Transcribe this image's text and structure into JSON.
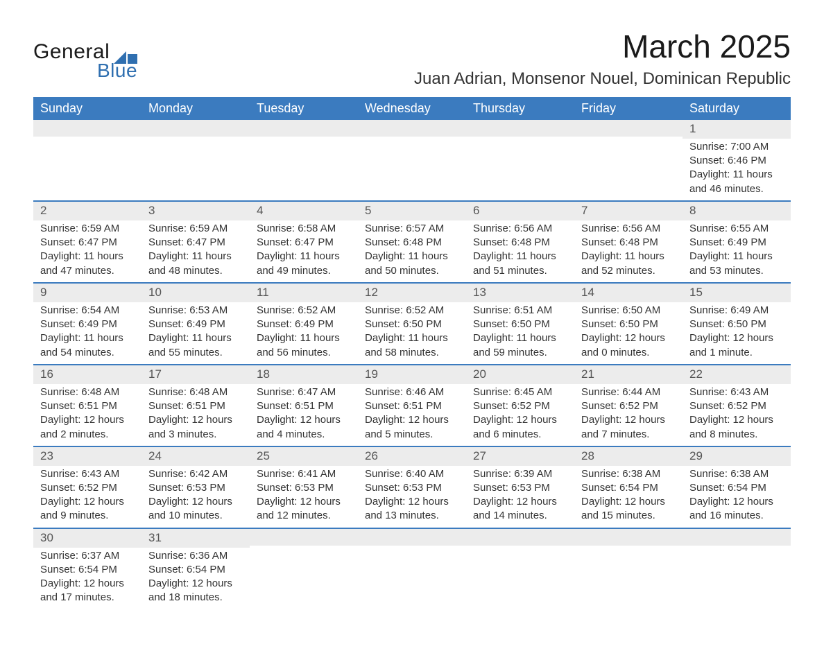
{
  "brand": {
    "general": "General",
    "blue": "Blue",
    "shape_color": "#2f6fb0"
  },
  "title": "March 2025",
  "location": "Juan Adrian, Monsenor Nouel, Dominican Republic",
  "colors": {
    "header_blue": "#3b7bbf",
    "row_separator": "#3b7bbf",
    "daynum_bg": "#ececec",
    "text": "#333333",
    "background": "#ffffff"
  },
  "typography": {
    "title_fontsize": 46,
    "location_fontsize": 24,
    "header_fontsize": 18,
    "body_fontsize": 15,
    "daynum_fontsize": 17,
    "font_family": "Arial"
  },
  "layout": {
    "columns": 7,
    "type": "table",
    "start_day": "Sunday",
    "leading_blanks": 6
  },
  "weekdays": [
    "Sunday",
    "Monday",
    "Tuesday",
    "Wednesday",
    "Thursday",
    "Friday",
    "Saturday"
  ],
  "days": [
    {
      "n": 1,
      "sunrise": "7:00 AM",
      "sunset": "6:46 PM",
      "daylight": "11 hours and 46 minutes."
    },
    {
      "n": 2,
      "sunrise": "6:59 AM",
      "sunset": "6:47 PM",
      "daylight": "11 hours and 47 minutes."
    },
    {
      "n": 3,
      "sunrise": "6:59 AM",
      "sunset": "6:47 PM",
      "daylight": "11 hours and 48 minutes."
    },
    {
      "n": 4,
      "sunrise": "6:58 AM",
      "sunset": "6:47 PM",
      "daylight": "11 hours and 49 minutes."
    },
    {
      "n": 5,
      "sunrise": "6:57 AM",
      "sunset": "6:48 PM",
      "daylight": "11 hours and 50 minutes."
    },
    {
      "n": 6,
      "sunrise": "6:56 AM",
      "sunset": "6:48 PM",
      "daylight": "11 hours and 51 minutes."
    },
    {
      "n": 7,
      "sunrise": "6:56 AM",
      "sunset": "6:48 PM",
      "daylight": "11 hours and 52 minutes."
    },
    {
      "n": 8,
      "sunrise": "6:55 AM",
      "sunset": "6:49 PM",
      "daylight": "11 hours and 53 minutes."
    },
    {
      "n": 9,
      "sunrise": "6:54 AM",
      "sunset": "6:49 PM",
      "daylight": "11 hours and 54 minutes."
    },
    {
      "n": 10,
      "sunrise": "6:53 AM",
      "sunset": "6:49 PM",
      "daylight": "11 hours and 55 minutes."
    },
    {
      "n": 11,
      "sunrise": "6:52 AM",
      "sunset": "6:49 PM",
      "daylight": "11 hours and 56 minutes."
    },
    {
      "n": 12,
      "sunrise": "6:52 AM",
      "sunset": "6:50 PM",
      "daylight": "11 hours and 58 minutes."
    },
    {
      "n": 13,
      "sunrise": "6:51 AM",
      "sunset": "6:50 PM",
      "daylight": "11 hours and 59 minutes."
    },
    {
      "n": 14,
      "sunrise": "6:50 AM",
      "sunset": "6:50 PM",
      "daylight": "12 hours and 0 minutes."
    },
    {
      "n": 15,
      "sunrise": "6:49 AM",
      "sunset": "6:50 PM",
      "daylight": "12 hours and 1 minute."
    },
    {
      "n": 16,
      "sunrise": "6:48 AM",
      "sunset": "6:51 PM",
      "daylight": "12 hours and 2 minutes."
    },
    {
      "n": 17,
      "sunrise": "6:48 AM",
      "sunset": "6:51 PM",
      "daylight": "12 hours and 3 minutes."
    },
    {
      "n": 18,
      "sunrise": "6:47 AM",
      "sunset": "6:51 PM",
      "daylight": "12 hours and 4 minutes."
    },
    {
      "n": 19,
      "sunrise": "6:46 AM",
      "sunset": "6:51 PM",
      "daylight": "12 hours and 5 minutes."
    },
    {
      "n": 20,
      "sunrise": "6:45 AM",
      "sunset": "6:52 PM",
      "daylight": "12 hours and 6 minutes."
    },
    {
      "n": 21,
      "sunrise": "6:44 AM",
      "sunset": "6:52 PM",
      "daylight": "12 hours and 7 minutes."
    },
    {
      "n": 22,
      "sunrise": "6:43 AM",
      "sunset": "6:52 PM",
      "daylight": "12 hours and 8 minutes."
    },
    {
      "n": 23,
      "sunrise": "6:43 AM",
      "sunset": "6:52 PM",
      "daylight": "12 hours and 9 minutes."
    },
    {
      "n": 24,
      "sunrise": "6:42 AM",
      "sunset": "6:53 PM",
      "daylight": "12 hours and 10 minutes."
    },
    {
      "n": 25,
      "sunrise": "6:41 AM",
      "sunset": "6:53 PM",
      "daylight": "12 hours and 12 minutes."
    },
    {
      "n": 26,
      "sunrise": "6:40 AM",
      "sunset": "6:53 PM",
      "daylight": "12 hours and 13 minutes."
    },
    {
      "n": 27,
      "sunrise": "6:39 AM",
      "sunset": "6:53 PM",
      "daylight": "12 hours and 14 minutes."
    },
    {
      "n": 28,
      "sunrise": "6:38 AM",
      "sunset": "6:54 PM",
      "daylight": "12 hours and 15 minutes."
    },
    {
      "n": 29,
      "sunrise": "6:38 AM",
      "sunset": "6:54 PM",
      "daylight": "12 hours and 16 minutes."
    },
    {
      "n": 30,
      "sunrise": "6:37 AM",
      "sunset": "6:54 PM",
      "daylight": "12 hours and 17 minutes."
    },
    {
      "n": 31,
      "sunrise": "6:36 AM",
      "sunset": "6:54 PM",
      "daylight": "12 hours and 18 minutes."
    }
  ],
  "labels": {
    "sunrise_prefix": "Sunrise: ",
    "sunset_prefix": "Sunset: ",
    "daylight_prefix": "Daylight: "
  }
}
